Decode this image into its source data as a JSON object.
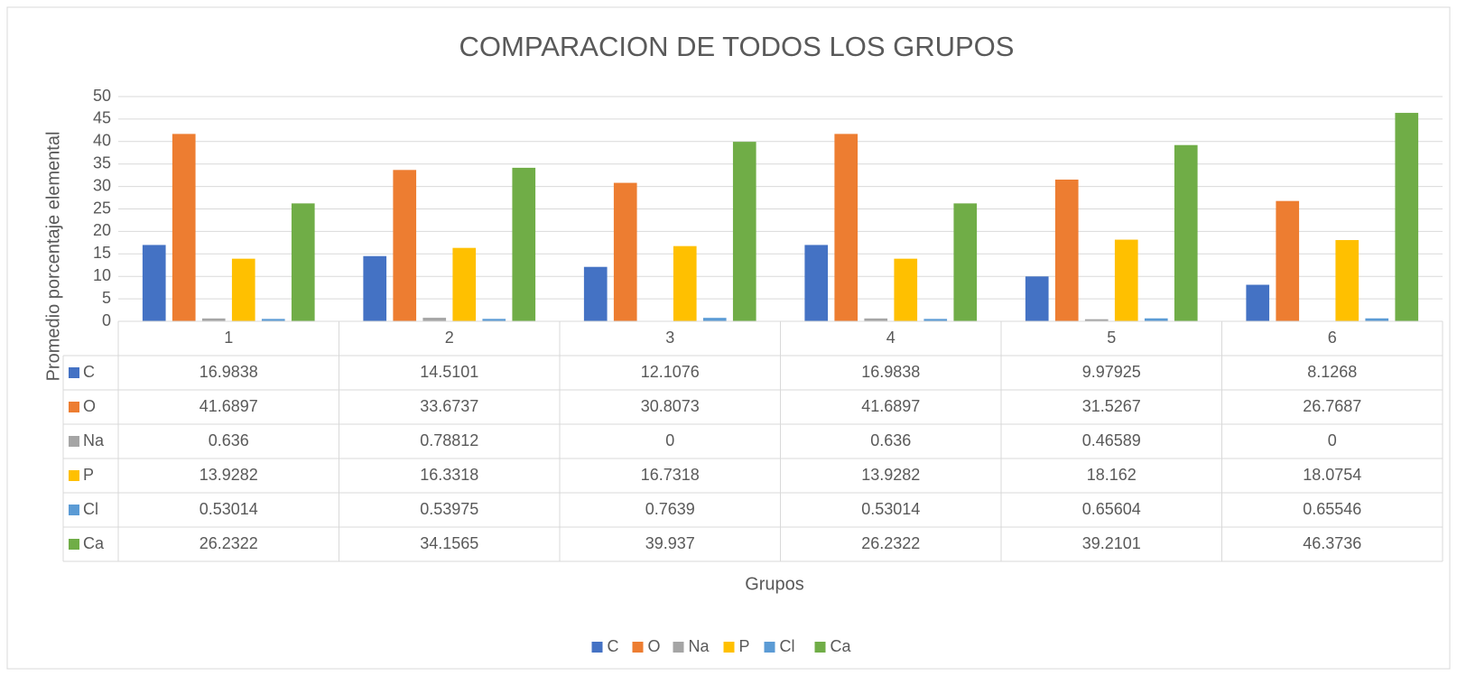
{
  "chart_data": {
    "type": "bar",
    "title": "COMPARACION DE TODOS LOS GRUPOS",
    "x_label": "Grupos",
    "y_label": "Promedio porcentaje elemental",
    "categories": [
      "1",
      "2",
      "3",
      "4",
      "5",
      "6"
    ],
    "series": [
      {
        "name": "C",
        "color": "#4472c4",
        "values": [
          16.9838,
          14.5101,
          12.1076,
          16.9838,
          9.97925,
          8.1268
        ]
      },
      {
        "name": "O",
        "color": "#ed7d31",
        "values": [
          41.6897,
          33.6737,
          30.8073,
          41.6897,
          31.5267,
          26.7687
        ]
      },
      {
        "name": "Na",
        "color": "#a5a5a5",
        "values": [
          0.636,
          0.78812,
          0,
          0.636,
          0.46589,
          0
        ]
      },
      {
        "name": "P",
        "color": "#ffc000",
        "values": [
          13.9282,
          16.3318,
          16.7318,
          13.9282,
          18.162,
          18.0754
        ]
      },
      {
        "name": "Cl",
        "color": "#5b9bd5",
        "values": [
          0.53014,
          0.53975,
          0.7639,
          0.53014,
          0.65604,
          0.65546
        ]
      },
      {
        "name": "Ca",
        "color": "#70ad47",
        "values": [
          26.2322,
          34.1565,
          39.937,
          26.2322,
          39.2101,
          46.3736
        ]
      }
    ],
    "ylim": [
      0,
      50
    ],
    "yticks": [
      0,
      5,
      10,
      15,
      20,
      25,
      30,
      35,
      40,
      45,
      50
    ],
    "grid": true,
    "legend": "bottom"
  }
}
